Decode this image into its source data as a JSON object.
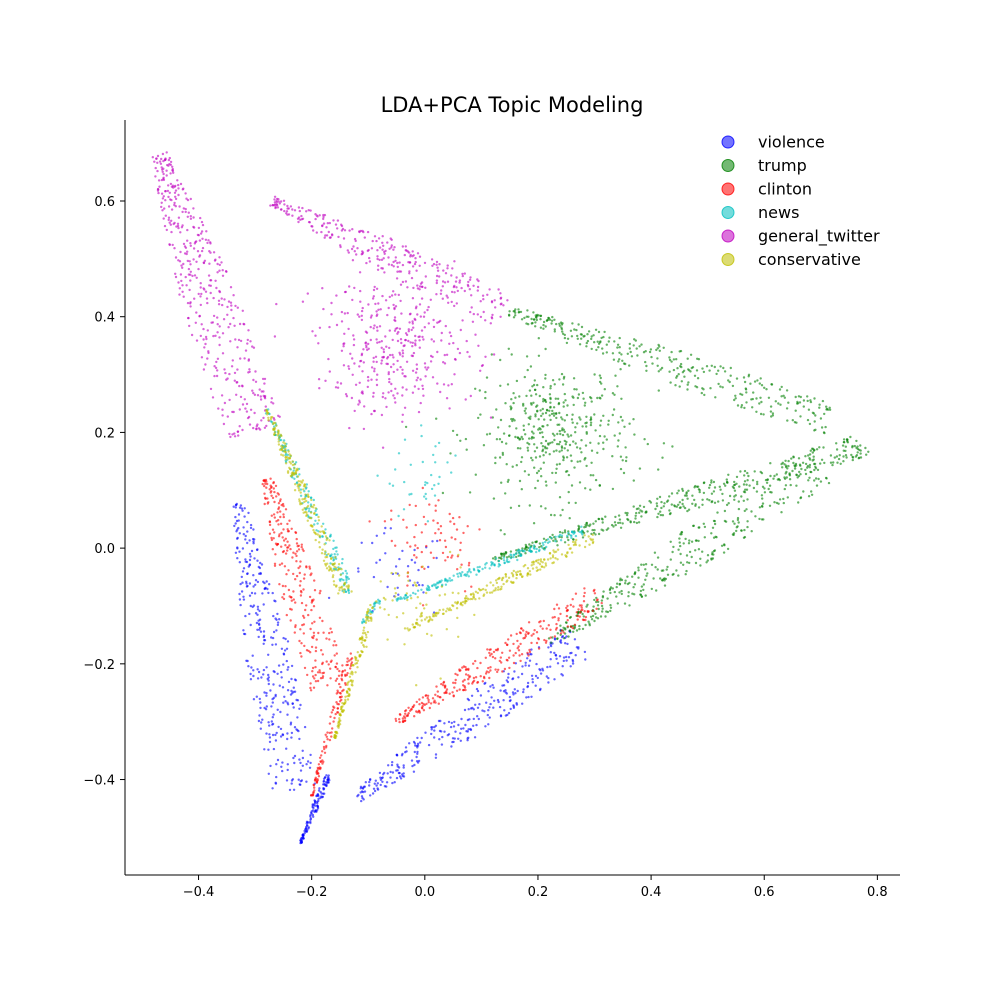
{
  "chart_data": {
    "type": "scatter",
    "title": "LDA+PCA Topic Modeling",
    "xlabel": "",
    "ylabel": "",
    "xlim": [
      -0.53,
      0.84
    ],
    "ylim": [
      -0.565,
      0.74
    ],
    "x_ticks": [
      -0.4,
      -0.2,
      0.0,
      0.2,
      0.4,
      0.6,
      0.8
    ],
    "x_tick_labels": [
      "−0.4",
      "−0.2",
      "0.0",
      "0.2",
      "0.4",
      "0.6",
      "0.8"
    ],
    "y_ticks": [
      -0.4,
      -0.2,
      0.0,
      0.2,
      0.4,
      0.6
    ],
    "y_tick_labels": [
      "−0.4",
      "−0.2",
      "0.0",
      "0.2",
      "0.4",
      "0.6"
    ],
    "grid": false,
    "legend_position": "top-right",
    "series": [
      {
        "name": "violence",
        "color": "#0000ff",
        "clusters": [
          {
            "kind": "line",
            "from": [
              -0.33,
              0.08
            ],
            "to": [
              -0.23,
              -0.42
            ],
            "width": 0.04,
            "n": 320
          },
          {
            "kind": "line",
            "from": [
              -0.22,
              -0.51
            ],
            "to": [
              -0.17,
              -0.39
            ],
            "width": 0.006,
            "n": 120
          },
          {
            "kind": "line",
            "from": [
              -0.12,
              -0.43
            ],
            "to": [
              0.27,
              -0.16
            ],
            "width": 0.035,
            "n": 320
          },
          {
            "kind": "blob",
            "center": [
              -0.05,
              -0.05
            ],
            "spread": [
              0.09,
              0.08
            ],
            "n": 40
          }
        ]
      },
      {
        "name": "trump",
        "color": "#008000",
        "clusters": [
          {
            "kind": "line",
            "from": [
              0.15,
              0.41
            ],
            "to": [
              0.72,
              0.22
            ],
            "width": 0.03,
            "n": 320
          },
          {
            "kind": "line",
            "from": [
              0.12,
              -0.02
            ],
            "to": [
              0.78,
              0.18
            ],
            "width": 0.02,
            "n": 380
          },
          {
            "kind": "line",
            "from": [
              0.22,
              -0.16
            ],
            "to": [
              0.7,
              0.14
            ],
            "width": 0.035,
            "n": 340
          },
          {
            "kind": "blob",
            "center": [
              0.23,
              0.2
            ],
            "spread": [
              0.14,
              0.12
            ],
            "n": 420
          }
        ]
      },
      {
        "name": "clinton",
        "color": "#ff0000",
        "clusters": [
          {
            "kind": "line",
            "from": [
              -0.28,
              0.12
            ],
            "to": [
              -0.17,
              -0.24
            ],
            "width": 0.035,
            "n": 260
          },
          {
            "kind": "line",
            "from": [
              -0.2,
              -0.43
            ],
            "to": [
              -0.13,
              -0.18
            ],
            "width": 0.006,
            "n": 110
          },
          {
            "kind": "line",
            "from": [
              -0.05,
              -0.3
            ],
            "to": [
              0.31,
              -0.08
            ],
            "width": 0.025,
            "n": 280
          },
          {
            "kind": "blob",
            "center": [
              0.02,
              0.02
            ],
            "spread": [
              0.09,
              0.1
            ],
            "n": 70
          }
        ]
      },
      {
        "name": "news",
        "color": "#00bfbf",
        "clusters": [
          {
            "kind": "line",
            "from": [
              -0.28,
              0.24
            ],
            "to": [
              -0.13,
              -0.08
            ],
            "width": 0.012,
            "n": 160
          },
          {
            "kind": "line",
            "from": [
              -0.05,
              -0.09
            ],
            "to": [
              0.28,
              0.03
            ],
            "width": 0.008,
            "n": 170
          },
          {
            "kind": "line",
            "from": [
              -0.12,
              -0.14
            ],
            "to": [
              -0.08,
              -0.09
            ],
            "width": 0.004,
            "n": 25
          },
          {
            "kind": "blob",
            "center": [
              0.0,
              0.12
            ],
            "spread": [
              0.07,
              0.07
            ],
            "n": 35
          }
        ]
      },
      {
        "name": "general_twitter",
        "color": "#bf00bf",
        "clusters": [
          {
            "kind": "line",
            "from": [
              -0.47,
              0.68
            ],
            "to": [
              -0.3,
              0.2
            ],
            "width": 0.05,
            "n": 420
          },
          {
            "kind": "line",
            "from": [
              -0.27,
              0.6
            ],
            "to": [
              0.14,
              0.41
            ],
            "width": 0.03,
            "n": 280
          },
          {
            "kind": "blob",
            "center": [
              -0.05,
              0.35
            ],
            "spread": [
              0.14,
              0.12
            ],
            "n": 360
          }
        ]
      },
      {
        "name": "conservative",
        "color": "#bfbf00",
        "clusters": [
          {
            "kind": "line",
            "from": [
              -0.28,
              0.24
            ],
            "to": [
              -0.14,
              -0.08
            ],
            "width": 0.012,
            "n": 220
          },
          {
            "kind": "line",
            "from": [
              -0.16,
              -0.33
            ],
            "to": [
              -0.09,
              -0.09
            ],
            "width": 0.006,
            "n": 140
          },
          {
            "kind": "line",
            "from": [
              -0.03,
              -0.14
            ],
            "to": [
              0.3,
              0.02
            ],
            "width": 0.01,
            "n": 200
          },
          {
            "kind": "blob",
            "center": [
              0.0,
              -0.1
            ],
            "spread": [
              0.09,
              0.1
            ],
            "n": 60
          }
        ]
      }
    ]
  }
}
